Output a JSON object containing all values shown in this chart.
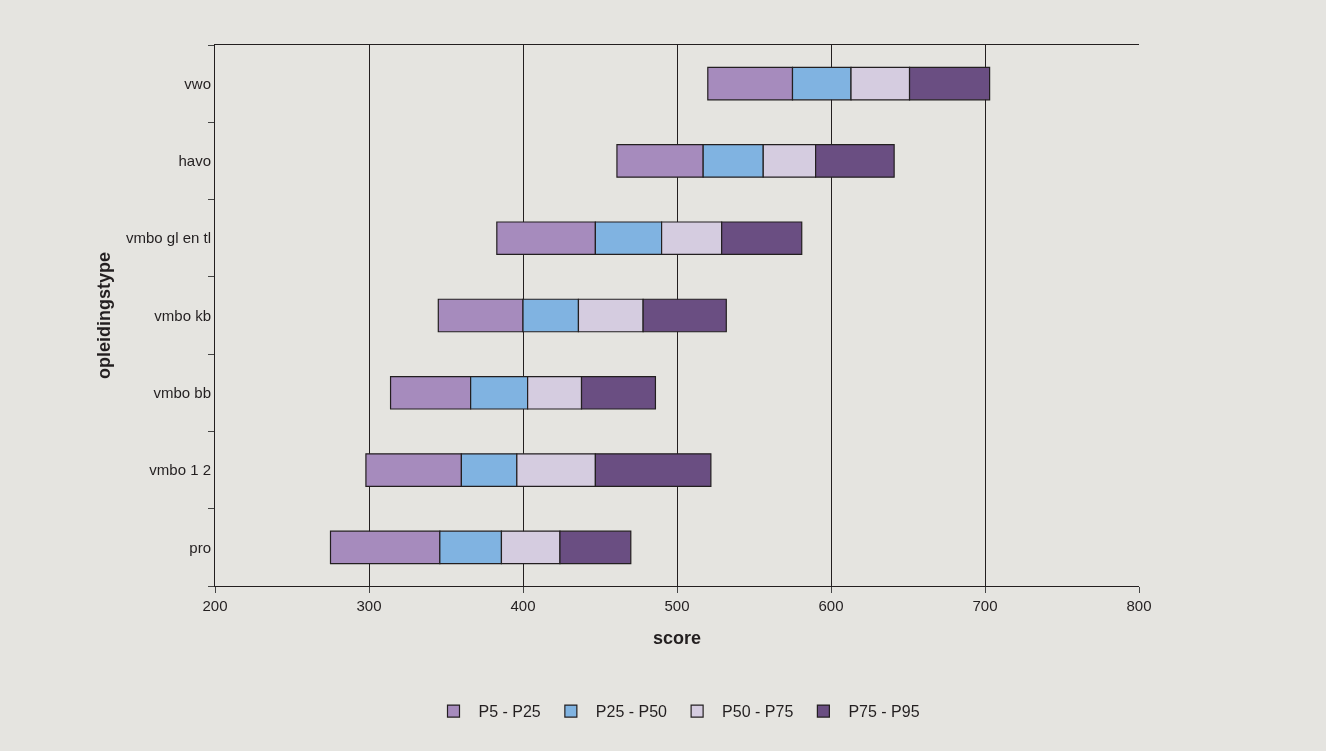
{
  "chart_data": {
    "type": "bar",
    "orientation": "horizontal",
    "xlabel": "score",
    "ylabel": "opleidingstype",
    "categories": [
      "vwo",
      "havo",
      "vmbo gl en tl",
      "vmbo kb",
      "vmbo bb",
      "vmbo 1 2",
      "pro"
    ],
    "series": [
      {
        "name": "P5 - P25",
        "color": "#a68bbd",
        "base": [
          520,
          461,
          383,
          345,
          314,
          298,
          275
        ],
        "values": [
          55,
          56,
          64,
          55,
          52,
          62,
          71
        ]
      },
      {
        "name": "P25 - P50",
        "color": "#80b3e1",
        "base": [
          575,
          517,
          447,
          400,
          366,
          360,
          346
        ],
        "values": [
          38,
          39,
          43,
          36,
          37,
          36,
          40
        ]
      },
      {
        "name": "P50 - P75",
        "color": "#d5cce0",
        "base": [
          613,
          556,
          490,
          436,
          403,
          396,
          386
        ],
        "values": [
          38,
          34,
          39,
          42,
          35,
          51,
          38
        ]
      },
      {
        "name": "P75 - P95",
        "color": "#6a4e82",
        "base": [
          651,
          590,
          529,
          478,
          438,
          447,
          424
        ],
        "values": [
          52,
          51,
          52,
          54,
          48,
          75,
          46
        ]
      }
    ],
    "xlim": [
      200,
      800
    ],
    "xticks": [
      200,
      300,
      400,
      500,
      600,
      700,
      800
    ],
    "grid": "x",
    "legend": "bottom"
  }
}
